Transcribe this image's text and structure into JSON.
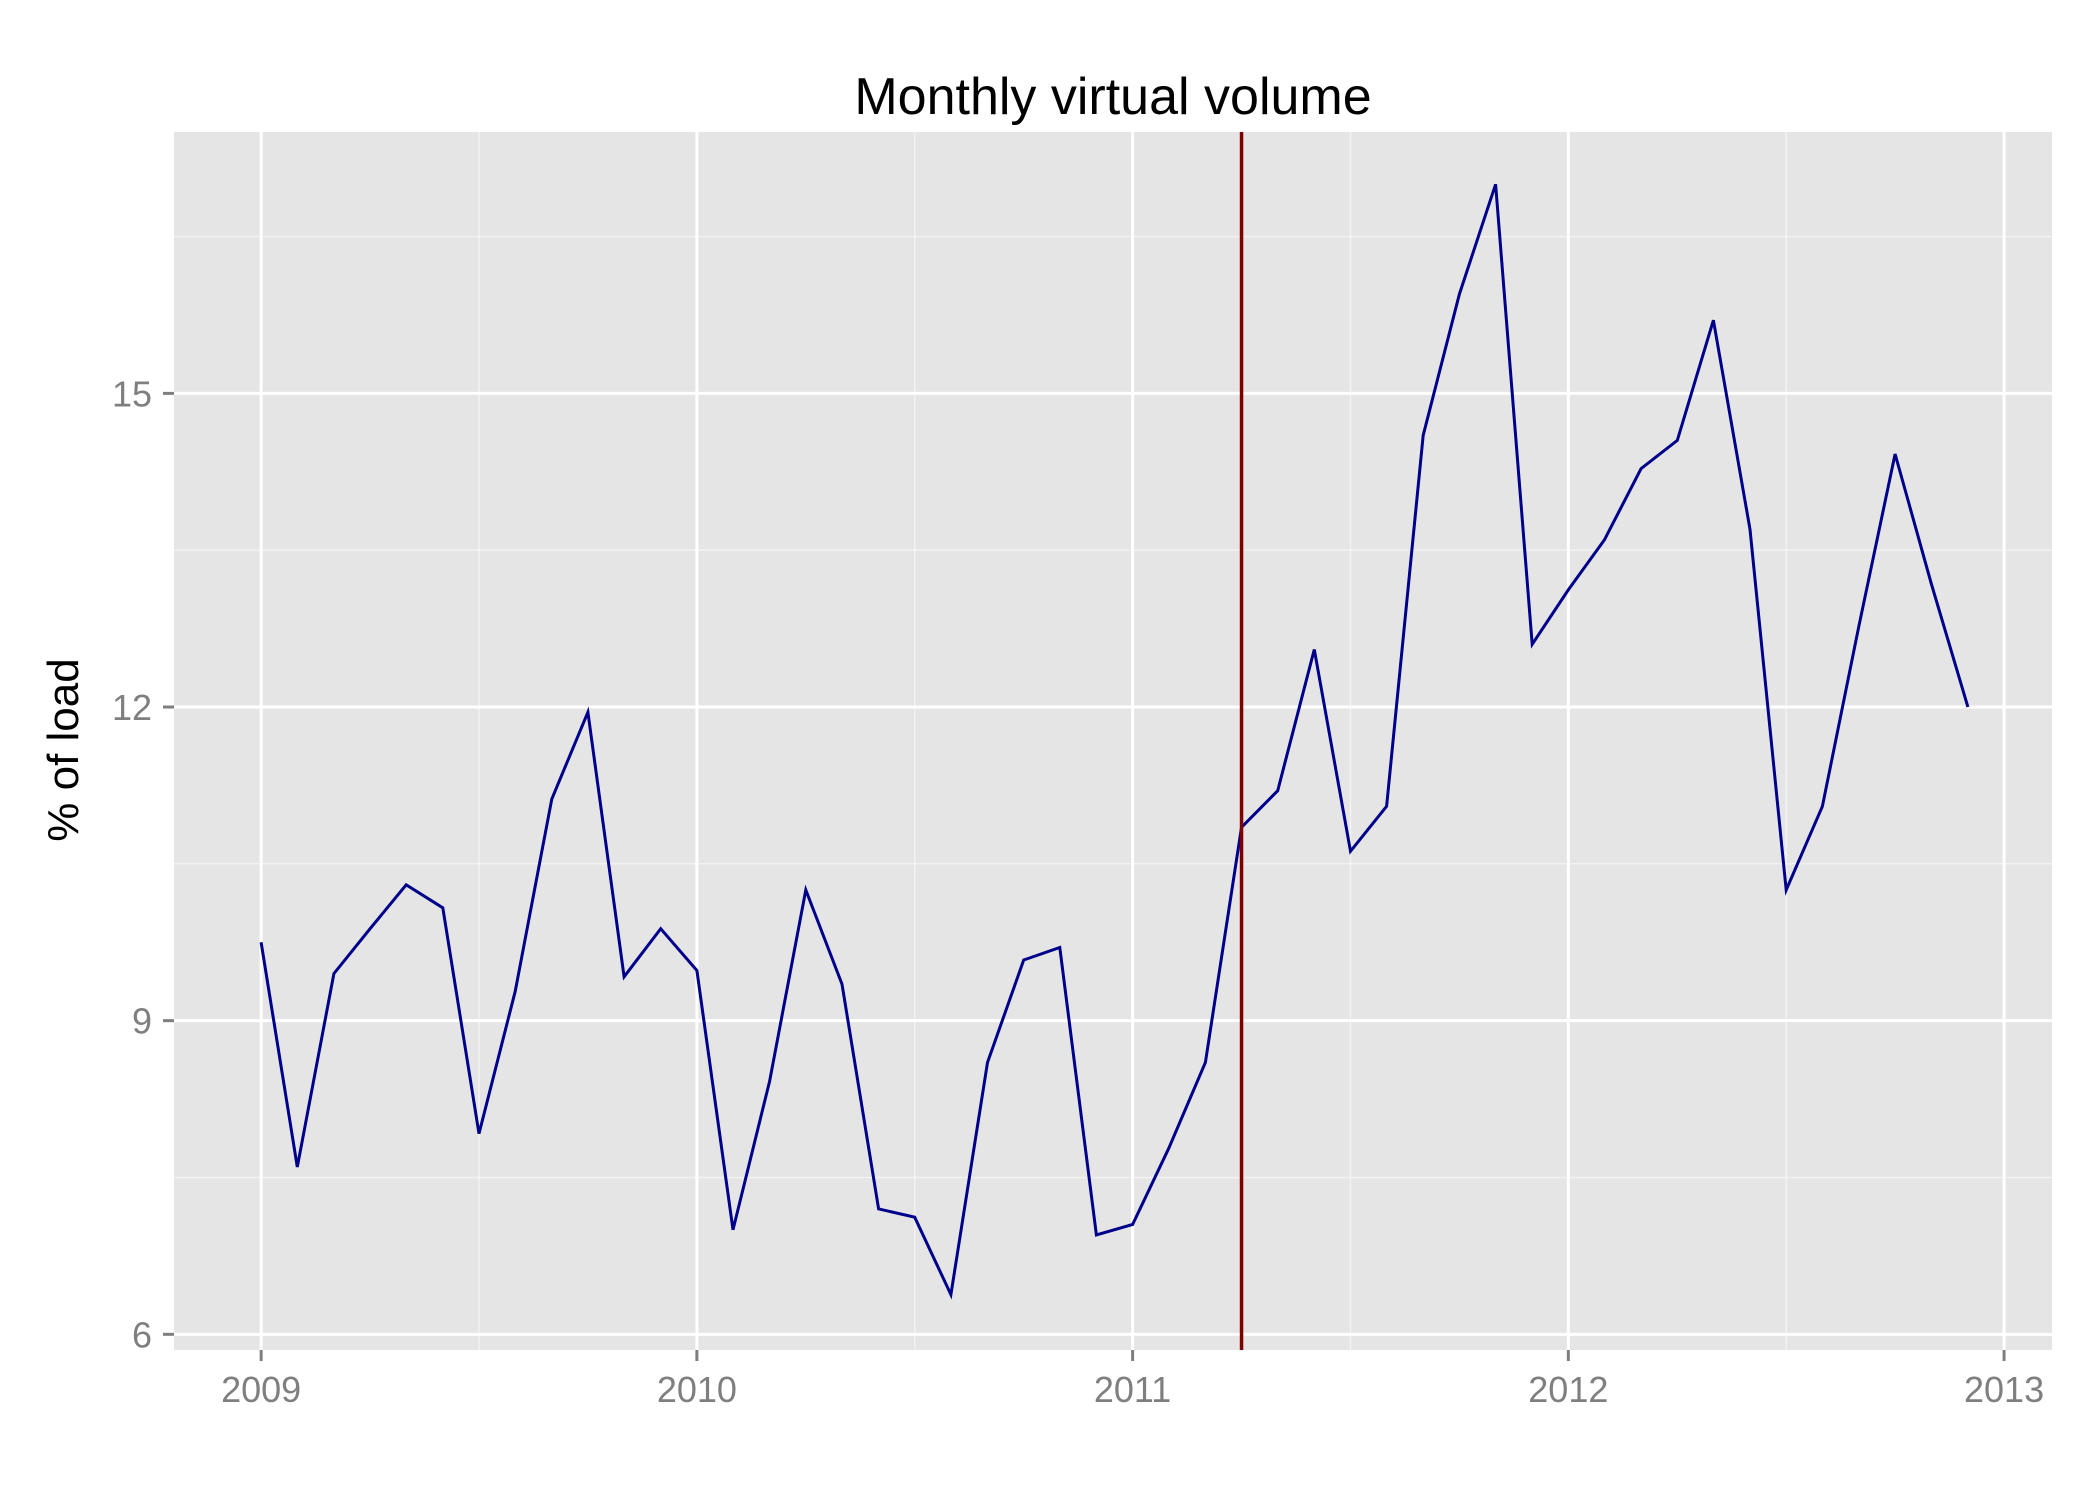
{
  "chart_data": {
    "type": "line",
    "title": "Monthly virtual volume",
    "xlabel": "",
    "ylabel": "% of load",
    "xlim": [
      2008.8,
      2013.11
    ],
    "ylim": [
      5.85,
      17.5
    ],
    "x_ticks": [
      2009,
      2010,
      2011,
      2012,
      2013
    ],
    "x_tick_labels": [
      "2009",
      "2010",
      "2011",
      "2012",
      "2013"
    ],
    "y_ticks": [
      6,
      9,
      12,
      15
    ],
    "y_tick_labels": [
      "6",
      "9",
      "12",
      "15"
    ],
    "grid": true,
    "colors": {
      "panel": "#e5e5e5",
      "grid": "#ffffff",
      "series": "#00008b",
      "vline": "#7f0000",
      "tick": "#7f7f7f"
    },
    "vline_x": 2011.25,
    "series": [
      {
        "x": [
          2009.0,
          2009.083,
          2009.167,
          2009.25,
          2009.333,
          2009.417,
          2009.5,
          2009.583,
          2009.667,
          2009.75,
          2009.833,
          2009.917,
          2010.0,
          2010.083,
          2010.167,
          2010.25,
          2010.333,
          2010.417,
          2010.5,
          2010.583,
          2010.667,
          2010.75,
          2010.833,
          2010.917,
          2011.0,
          2011.083,
          2011.167,
          2011.25,
          2011.333,
          2011.417,
          2011.5,
          2011.583,
          2011.667,
          2011.75,
          2011.833,
          2011.917,
          2012.0,
          2012.083,
          2012.167,
          2012.25,
          2012.333,
          2012.417,
          2012.5,
          2012.583,
          2012.667,
          2012.75,
          2012.833,
          2012.917
        ],
        "values": [
          9.75,
          7.6,
          9.45,
          9.88,
          10.3,
          10.08,
          7.92,
          9.28,
          11.12,
          11.95,
          9.42,
          9.88,
          9.48,
          7.0,
          8.42,
          10.25,
          9.35,
          7.2,
          7.12,
          6.38,
          8.6,
          9.58,
          9.7,
          6.95,
          7.05,
          7.78,
          8.6,
          10.85,
          11.2,
          12.55,
          10.62,
          11.05,
          14.6,
          15.95,
          17.0,
          12.6,
          13.12,
          13.6,
          14.28,
          14.55,
          15.7,
          13.7,
          10.25,
          11.05,
          12.78,
          14.42,
          13.18,
          12.0
        ]
      }
    ]
  }
}
